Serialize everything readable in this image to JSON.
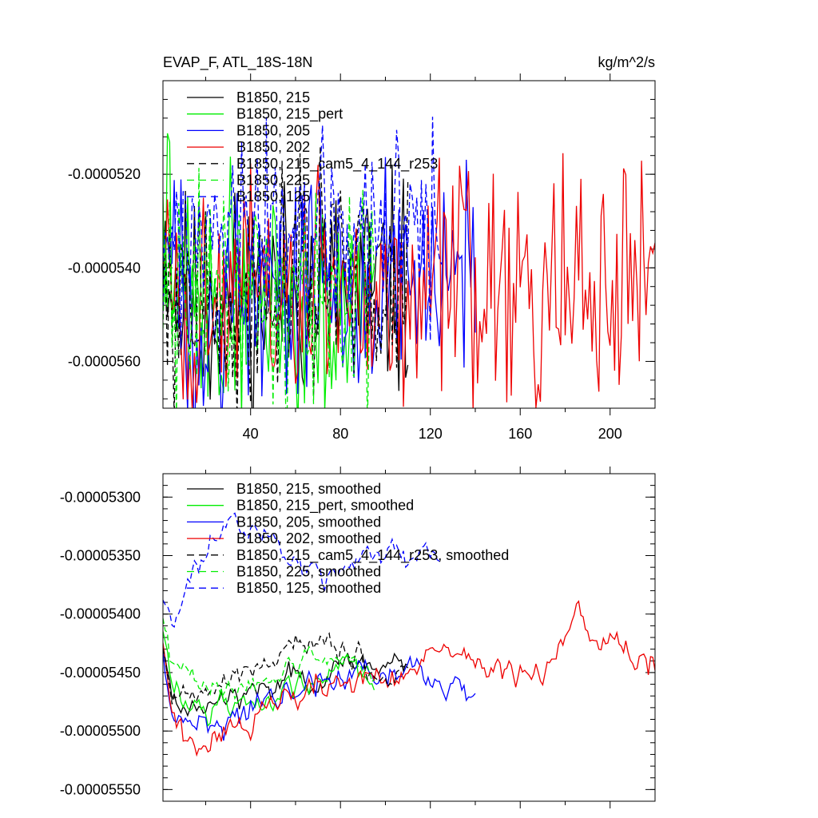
{
  "chart_data": [
    {
      "type": "line",
      "title": "EVAP_F, ATL_18S-18N",
      "units_label": "kg/m^2/s",
      "xlim": [
        1,
        220
      ],
      "ylim": [
        -5.7e-05,
        -5e-05
      ],
      "xticks": [
        40,
        80,
        120,
        160,
        200
      ],
      "xtick_labels": [
        "40",
        "80",
        "120",
        "160",
        "200"
      ],
      "yticks": [
        -5.2e-05,
        -5.4e-05,
        -5.6e-05
      ],
      "ytick_labels": [
        "-0.0000520",
        "-0.0000540",
        "-0.0000560"
      ],
      "grid": false,
      "legend_position": "top-left",
      "series": [
        {
          "name": "B1850, 215",
          "color": "#000000",
          "dash": "solid",
          "n": 110,
          "seed": 11,
          "noise": 1.4e-06,
          "knots": [
            [
              1,
              -5.3e-05
            ],
            [
              6,
              -5.46e-05
            ],
            [
              20,
              -5.5e-05
            ],
            [
              40,
              -5.46e-05
            ],
            [
              60,
              -5.45e-05
            ],
            [
              80,
              -5.45e-05
            ],
            [
              110,
              -5.44e-05
            ]
          ]
        },
        {
          "name": "B1850, 215_pert",
          "color": "#00ee00",
          "dash": "solid",
          "n": 95,
          "seed": 22,
          "noise": 1.4e-06,
          "knots": [
            [
              1,
              -5.22e-05
            ],
            [
              6,
              -5.44e-05
            ],
            [
              20,
              -5.48e-05
            ],
            [
              40,
              -5.46e-05
            ],
            [
              60,
              -5.46e-05
            ],
            [
              95,
              -5.45e-05
            ]
          ]
        },
        {
          "name": "B1850, 205",
          "color": "#0000ff",
          "dash": "solid",
          "n": 140,
          "seed": 33,
          "noise": 1.5e-06,
          "knots": [
            [
              1,
              -5.35e-05
            ],
            [
              6,
              -5.46e-05
            ],
            [
              20,
              -5.48e-05
            ],
            [
              40,
              -5.45e-05
            ],
            [
              60,
              -5.44e-05
            ],
            [
              80,
              -5.43e-05
            ],
            [
              100,
              -5.43e-05
            ],
            [
              120,
              -5.45e-05
            ],
            [
              140,
              -5.44e-05
            ]
          ]
        },
        {
          "name": "B1850, 202",
          "color": "#ee0000",
          "dash": "solid",
          "n": 220,
          "seed": 44,
          "noise": 1.5e-06,
          "knots": [
            [
              1,
              -5.38e-05
            ],
            [
              6,
              -5.48e-05
            ],
            [
              20,
              -5.51e-05
            ],
            [
              40,
              -5.47e-05
            ],
            [
              60,
              -5.46e-05
            ],
            [
              80,
              -5.46e-05
            ],
            [
              100,
              -5.45e-05
            ],
            [
              120,
              -5.44e-05
            ],
            [
              140,
              -5.45e-05
            ],
            [
              160,
              -5.46e-05
            ],
            [
              180,
              -5.45e-05
            ],
            [
              200,
              -5.46e-05
            ],
            [
              220,
              -5.41e-05
            ]
          ]
        },
        {
          "name": "B1850, 215_cam5_4_144_r253",
          "color": "#000000",
          "dash": "dashed",
          "n": 110,
          "seed": 55,
          "noise": 1.4e-06,
          "knots": [
            [
              1,
              -5.34e-05
            ],
            [
              6,
              -5.46e-05
            ],
            [
              20,
              -5.48e-05
            ],
            [
              40,
              -5.46e-05
            ],
            [
              60,
              -5.44e-05
            ],
            [
              80,
              -5.43e-05
            ],
            [
              110,
              -5.45e-05
            ]
          ]
        },
        {
          "name": "B1850, 225",
          "color": "#00ee00",
          "dash": "dashed",
          "n": 95,
          "seed": 66,
          "noise": 1.4e-06,
          "knots": [
            [
              1,
              -5.3e-05
            ],
            [
              6,
              -5.45e-05
            ],
            [
              20,
              -5.47e-05
            ],
            [
              40,
              -5.45e-05
            ],
            [
              60,
              -5.45e-05
            ],
            [
              95,
              -5.44e-05
            ]
          ]
        },
        {
          "name": "B1850, 125",
          "color": "#0000ff",
          "dash": "dashed",
          "n": 125,
          "seed": 77,
          "noise": 1.2e-06,
          "knots": [
            [
              1,
              -5.3e-05
            ],
            [
              10,
              -5.37e-05
            ],
            [
              30,
              -5.35e-05
            ],
            [
              50,
              -5.32e-05
            ],
            [
              70,
              -5.33e-05
            ],
            [
              90,
              -5.35e-05
            ],
            [
              105,
              -5.32e-05
            ],
            [
              125,
              -5.33e-05
            ]
          ]
        }
      ]
    },
    {
      "type": "line",
      "xlim": [
        1,
        220
      ],
      "ylim": [
        -5.56e-05,
        -5.28e-05
      ],
      "xticks": [
        40,
        80,
        120,
        160,
        200
      ],
      "yticks": [
        -5.3e-05,
        -5.35e-05,
        -5.4e-05,
        -5.45e-05,
        -5.5e-05,
        -5.55e-05
      ],
      "ytick_labels": [
        "-0.00005300",
        "-0.00005350",
        "-0.00005400",
        "-0.00005450",
        "-0.00005500",
        "-0.00005550"
      ],
      "grid": false,
      "legend_position": "top-left",
      "series": [
        {
          "name": "B1850, 215, smoothed",
          "color": "#000000",
          "dash": "solid",
          "n": 110,
          "seed": 111,
          "noise": 1e-07,
          "knots": [
            [
              1,
              -5.43e-05
            ],
            [
              5,
              -5.47e-05
            ],
            [
              15,
              -5.48e-05
            ],
            [
              30,
              -5.47e-05
            ],
            [
              50,
              -5.46e-05
            ],
            [
              70,
              -5.45e-05
            ],
            [
              90,
              -5.44e-05
            ],
            [
              110,
              -5.45e-05
            ]
          ]
        },
        {
          "name": "B1850, 215_pert, smoothed",
          "color": "#00ee00",
          "dash": "solid",
          "n": 95,
          "seed": 122,
          "noise": 1e-07,
          "knots": [
            [
              1,
              -5.41e-05
            ],
            [
              5,
              -5.46e-05
            ],
            [
              15,
              -5.48e-05
            ],
            [
              30,
              -5.48e-05
            ],
            [
              50,
              -5.47e-05
            ],
            [
              70,
              -5.45e-05
            ],
            [
              95,
              -5.45e-05
            ]
          ]
        },
        {
          "name": "B1850, 205, smoothed",
          "color": "#0000ff",
          "dash": "solid",
          "n": 140,
          "seed": 133,
          "noise": 1.2e-07,
          "knots": [
            [
              1,
              -5.43e-05
            ],
            [
              5,
              -5.48e-05
            ],
            [
              15,
              -5.49e-05
            ],
            [
              30,
              -5.49e-05
            ],
            [
              50,
              -5.47e-05
            ],
            [
              70,
              -5.46e-05
            ],
            [
              90,
              -5.45e-05
            ],
            [
              110,
              -5.44e-05
            ],
            [
              125,
              -5.47e-05
            ],
            [
              140,
              -5.46e-05
            ]
          ]
        },
        {
          "name": "B1850, 202, smoothed",
          "color": "#ee0000",
          "dash": "solid",
          "n": 220,
          "seed": 144,
          "noise": 1.1e-07,
          "knots": [
            [
              1,
              -5.42e-05
            ],
            [
              5,
              -5.49e-05
            ],
            [
              15,
              -5.51e-05
            ],
            [
              30,
              -5.5e-05
            ],
            [
              50,
              -5.48e-05
            ],
            [
              70,
              -5.46e-05
            ],
            [
              90,
              -5.45e-05
            ],
            [
              110,
              -5.45e-05
            ],
            [
              130,
              -5.43e-05
            ],
            [
              150,
              -5.45e-05
            ],
            [
              170,
              -5.45e-05
            ],
            [
              185,
              -5.41e-05
            ],
            [
              200,
              -5.43e-05
            ],
            [
              220,
              -5.44e-05
            ]
          ]
        },
        {
          "name": "B1850, 215_cam5_4_144_r253, smoothed",
          "color": "#000000",
          "dash": "dashed",
          "n": 110,
          "seed": 155,
          "noise": 1e-07,
          "knots": [
            [
              1,
              -5.43e-05
            ],
            [
              5,
              -5.47e-05
            ],
            [
              15,
              -5.47e-05
            ],
            [
              30,
              -5.46e-05
            ],
            [
              50,
              -5.44e-05
            ],
            [
              60,
              -5.42e-05
            ],
            [
              75,
              -5.43e-05
            ],
            [
              90,
              -5.44e-05
            ],
            [
              100,
              -5.46e-05
            ],
            [
              110,
              -5.45e-05
            ]
          ]
        },
        {
          "name": "B1850, 225, smoothed",
          "color": "#00ee00",
          "dash": "dashed",
          "n": 95,
          "seed": 166,
          "noise": 1e-07,
          "knots": [
            [
              1,
              -5.4e-05
            ],
            [
              5,
              -5.45e-05
            ],
            [
              15,
              -5.46e-05
            ],
            [
              30,
              -5.47e-05
            ],
            [
              50,
              -5.46e-05
            ],
            [
              70,
              -5.43e-05
            ],
            [
              95,
              -5.45e-05
            ]
          ]
        },
        {
          "name": "B1850, 125, smoothed",
          "color": "#0000ff",
          "dash": "dashed",
          "n": 125,
          "seed": 177,
          "noise": 1e-07,
          "knots": [
            [
              1,
              -5.38e-05
            ],
            [
              5,
              -5.41e-05
            ],
            [
              15,
              -5.36e-05
            ],
            [
              30,
              -5.32e-05
            ],
            [
              45,
              -5.33e-05
            ],
            [
              60,
              -5.36e-05
            ],
            [
              75,
              -5.37e-05
            ],
            [
              90,
              -5.35e-05
            ],
            [
              110,
              -5.35e-05
            ],
            [
              125,
              -5.35e-05
            ]
          ]
        }
      ]
    }
  ]
}
